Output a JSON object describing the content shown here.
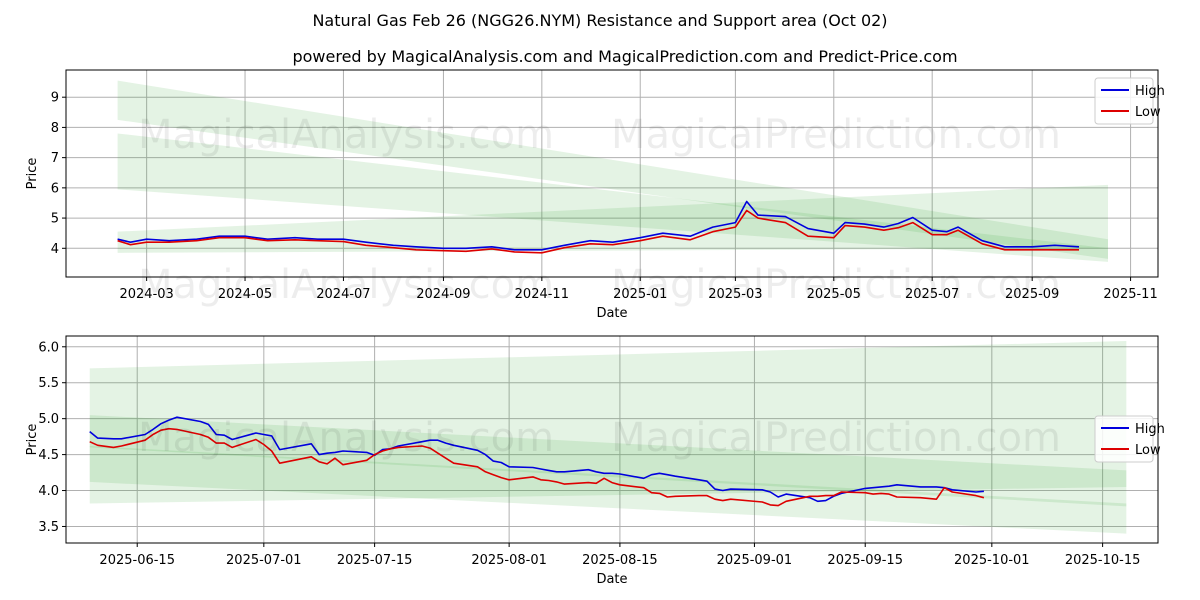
{
  "title": "Natural Gas Feb 26 (NGG26.NYM) Resistance and Support area (Oct 02)",
  "subtitle": "powered by MagicalAnalysis.com and MagicalPrediction.com and Predict-Price.com",
  "watermarks": [
    "MagicalAnalysis.com",
    "MagicalPrediction.com"
  ],
  "colors": {
    "high": "#0000dd",
    "low": "#dd0000",
    "band": "#2ca02c",
    "grid": "#b0b0b0"
  },
  "chart_data": [
    {
      "type": "line",
      "panel": "top",
      "xlabel": "Date",
      "ylabel": "Price",
      "x_range": [
        "2024-01-11",
        "2025-11-18"
      ],
      "ylim": [
        3.05,
        9.9
      ],
      "yticks": [
        4,
        5,
        6,
        7,
        8,
        9
      ],
      "xticks": [
        {
          "date": "2024-03-01",
          "label": "2024-03"
        },
        {
          "date": "2024-05-01",
          "label": "2024-05"
        },
        {
          "date": "2024-07-01",
          "label": "2024-07"
        },
        {
          "date": "2024-09-01",
          "label": "2024-09"
        },
        {
          "date": "2024-11-01",
          "label": "2024-11"
        },
        {
          "date": "2025-01-01",
          "label": "2025-01"
        },
        {
          "date": "2025-03-01",
          "label": "2025-03"
        },
        {
          "date": "2025-05-01",
          "label": "2025-05"
        },
        {
          "date": "2025-07-01",
          "label": "2025-07"
        },
        {
          "date": "2025-09-01",
          "label": "2025-09"
        },
        {
          "date": "2025-11-01",
          "label": "2025-11"
        }
      ],
      "legend": {
        "position": "top-right",
        "entries": [
          "High",
          "Low"
        ]
      },
      "bands": [
        {
          "x": [
            "2024-02-12",
            "2025-10-18"
          ],
          "upper": [
            9.55,
            4.3
          ],
          "lower": [
            8.25,
            3.65
          ]
        },
        {
          "x": [
            "2024-02-12",
            "2025-10-18"
          ],
          "upper": [
            7.8,
            4.0
          ],
          "lower": [
            5.95,
            3.55
          ]
        },
        {
          "x": [
            "2024-02-12",
            "2025-10-18"
          ],
          "upper": [
            4.55,
            6.1
          ],
          "lower": [
            3.85,
            4.0
          ]
        }
      ],
      "series": [
        {
          "name": "High",
          "x": [
            "2024-02-12",
            "2024-02-20",
            "2024-03-01",
            "2024-03-15",
            "2024-04-01",
            "2024-04-15",
            "2024-05-01",
            "2024-05-15",
            "2024-06-01",
            "2024-06-15",
            "2024-07-01",
            "2024-07-15",
            "2024-08-01",
            "2024-08-15",
            "2024-09-01",
            "2024-09-15",
            "2024-10-01",
            "2024-10-15",
            "2024-11-01",
            "2024-11-15",
            "2024-12-01",
            "2024-12-15",
            "2025-01-01",
            "2025-01-15",
            "2025-02-01",
            "2025-02-15",
            "2025-03-01",
            "2025-03-08",
            "2025-03-15",
            "2025-04-01",
            "2025-04-15",
            "2025-05-01",
            "2025-05-08",
            "2025-05-20",
            "2025-06-01",
            "2025-06-10",
            "2025-06-19",
            "2025-07-01",
            "2025-07-10",
            "2025-07-17",
            "2025-08-01",
            "2025-08-15",
            "2025-09-01",
            "2025-09-15",
            "2025-09-30"
          ],
          "values": [
            4.3,
            4.2,
            4.3,
            4.25,
            4.3,
            4.4,
            4.4,
            4.3,
            4.35,
            4.3,
            4.3,
            4.2,
            4.1,
            4.05,
            4.0,
            4.0,
            4.05,
            3.95,
            3.95,
            4.1,
            4.25,
            4.2,
            4.35,
            4.5,
            4.4,
            4.7,
            4.85,
            5.55,
            5.1,
            5.05,
            4.65,
            4.5,
            4.85,
            4.8,
            4.7,
            4.82,
            5.02,
            4.6,
            4.55,
            4.7,
            4.25,
            4.05,
            4.05,
            4.1,
            4.05
          ]
        },
        {
          "name": "Low",
          "x": [
            "2024-02-12",
            "2024-02-20",
            "2024-03-01",
            "2024-03-15",
            "2024-04-01",
            "2024-04-15",
            "2024-05-01",
            "2024-05-15",
            "2024-06-01",
            "2024-06-15",
            "2024-07-01",
            "2024-07-15",
            "2024-08-01",
            "2024-08-15",
            "2024-09-01",
            "2024-09-15",
            "2024-10-01",
            "2024-10-15",
            "2024-11-01",
            "2024-11-15",
            "2024-12-01",
            "2024-12-15",
            "2025-01-01",
            "2025-01-15",
            "2025-02-01",
            "2025-02-15",
            "2025-03-01",
            "2025-03-08",
            "2025-03-15",
            "2025-04-01",
            "2025-04-15",
            "2025-05-01",
            "2025-05-08",
            "2025-05-20",
            "2025-06-01",
            "2025-06-10",
            "2025-06-19",
            "2025-07-01",
            "2025-07-10",
            "2025-07-17",
            "2025-08-01",
            "2025-08-15",
            "2025-09-01",
            "2025-09-15",
            "2025-09-30"
          ],
          "values": [
            4.25,
            4.12,
            4.2,
            4.2,
            4.25,
            4.35,
            4.35,
            4.25,
            4.28,
            4.25,
            4.22,
            4.1,
            4.02,
            3.95,
            3.92,
            3.9,
            3.98,
            3.88,
            3.85,
            4.02,
            4.15,
            4.12,
            4.25,
            4.4,
            4.28,
            4.55,
            4.7,
            5.25,
            5.0,
            4.85,
            4.4,
            4.35,
            4.75,
            4.7,
            4.6,
            4.68,
            4.85,
            4.45,
            4.45,
            4.6,
            4.15,
            3.95,
            3.95,
            3.95,
            3.95
          ]
        }
      ]
    },
    {
      "type": "line",
      "panel": "bottom",
      "xlabel": "Date",
      "ylabel": "Price",
      "x_range": [
        "2025-06-06",
        "2025-10-22"
      ],
      "ylim": [
        3.27,
        6.15
      ],
      "yticks": [
        3.5,
        4.0,
        4.5,
        5.0,
        5.5,
        6.0
      ],
      "xticks": [
        {
          "date": "2025-06-15",
          "label": "2025-06-15"
        },
        {
          "date": "2025-07-01",
          "label": "2025-07-01"
        },
        {
          "date": "2025-07-15",
          "label": "2025-07-15"
        },
        {
          "date": "2025-08-01",
          "label": "2025-08-01"
        },
        {
          "date": "2025-08-15",
          "label": "2025-08-15"
        },
        {
          "date": "2025-09-01",
          "label": "2025-09-01"
        },
        {
          "date": "2025-09-15",
          "label": "2025-09-15"
        },
        {
          "date": "2025-10-01",
          "label": "2025-10-01"
        },
        {
          "date": "2025-10-15",
          "label": "2025-10-15"
        }
      ],
      "legend": {
        "position": "center-right",
        "entries": [
          "High",
          "Low"
        ]
      },
      "bands": [
        {
          "x": [
            "2025-06-09",
            "2025-10-18"
          ],
          "upper": [
            5.7,
            6.08
          ],
          "lower": [
            3.82,
            4.05
          ]
        },
        {
          "x": [
            "2025-06-09",
            "2025-10-18"
          ],
          "upper": [
            5.05,
            4.28
          ],
          "lower": [
            4.6,
            3.78
          ]
        },
        {
          "x": [
            "2025-06-09",
            "2025-10-18"
          ],
          "upper": [
            4.62,
            3.82
          ],
          "lower": [
            4.12,
            3.4
          ]
        }
      ],
      "series": [
        {
          "name": "High",
          "x": [
            "2025-06-09",
            "2025-06-10",
            "2025-06-12",
            "2025-06-13",
            "2025-06-16",
            "2025-06-17",
            "2025-06-18",
            "2025-06-19",
            "2025-06-20",
            "2025-06-23",
            "2025-06-24",
            "2025-06-25",
            "2025-06-26",
            "2025-06-27",
            "2025-06-30",
            "2025-07-01",
            "2025-07-02",
            "2025-07-03",
            "2025-07-07",
            "2025-07-08",
            "2025-07-09",
            "2025-07-10",
            "2025-07-11",
            "2025-07-14",
            "2025-07-15",
            "2025-07-16",
            "2025-07-17",
            "2025-07-18",
            "2025-07-21",
            "2025-07-22",
            "2025-07-23",
            "2025-07-24",
            "2025-07-25",
            "2025-07-28",
            "2025-07-29",
            "2025-07-30",
            "2025-07-31",
            "2025-08-01",
            "2025-08-04",
            "2025-08-05",
            "2025-08-06",
            "2025-08-07",
            "2025-08-08",
            "2025-08-11",
            "2025-08-12",
            "2025-08-13",
            "2025-08-14",
            "2025-08-15",
            "2025-08-18",
            "2025-08-19",
            "2025-08-20",
            "2025-08-21",
            "2025-08-22",
            "2025-08-25",
            "2025-08-26",
            "2025-08-27",
            "2025-08-28",
            "2025-08-29",
            "2025-09-02",
            "2025-09-03",
            "2025-09-04",
            "2025-09-05",
            "2025-09-08",
            "2025-09-09",
            "2025-09-10",
            "2025-09-11",
            "2025-09-12",
            "2025-09-15",
            "2025-09-16",
            "2025-09-17",
            "2025-09-18",
            "2025-09-19",
            "2025-09-22",
            "2025-09-23",
            "2025-09-24",
            "2025-09-25",
            "2025-09-26",
            "2025-09-29",
            "2025-09-30"
          ],
          "values": [
            4.82,
            4.73,
            4.72,
            4.72,
            4.78,
            4.85,
            4.93,
            4.98,
            5.02,
            4.96,
            4.92,
            4.78,
            4.77,
            4.71,
            4.8,
            4.78,
            4.76,
            4.57,
            4.65,
            4.5,
            4.52,
            4.53,
            4.55,
            4.53,
            4.49,
            4.57,
            4.58,
            4.62,
            4.68,
            4.7,
            4.7,
            4.66,
            4.63,
            4.56,
            4.5,
            4.41,
            4.39,
            4.33,
            4.32,
            4.3,
            4.28,
            4.26,
            4.26,
            4.29,
            4.26,
            4.24,
            4.24,
            4.23,
            4.17,
            4.22,
            4.24,
            4.22,
            4.2,
            4.15,
            4.13,
            4.02,
            4.0,
            4.02,
            4.01,
            3.98,
            3.91,
            3.95,
            3.9,
            3.85,
            3.86,
            3.92,
            3.96,
            4.03,
            4.04,
            4.05,
            4.06,
            4.08,
            4.05,
            4.05,
            4.05,
            4.04,
            4.01,
            3.98,
            3.99
          ]
        },
        {
          "name": "Low",
          "x": [
            "2025-06-09",
            "2025-06-10",
            "2025-06-12",
            "2025-06-13",
            "2025-06-16",
            "2025-06-17",
            "2025-06-18",
            "2025-06-19",
            "2025-06-20",
            "2025-06-23",
            "2025-06-24",
            "2025-06-25",
            "2025-06-26",
            "2025-06-27",
            "2025-06-30",
            "2025-07-01",
            "2025-07-02",
            "2025-07-03",
            "2025-07-07",
            "2025-07-08",
            "2025-07-09",
            "2025-07-10",
            "2025-07-11",
            "2025-07-14",
            "2025-07-15",
            "2025-07-16",
            "2025-07-17",
            "2025-07-18",
            "2025-07-21",
            "2025-07-22",
            "2025-07-23",
            "2025-07-24",
            "2025-07-25",
            "2025-07-28",
            "2025-07-29",
            "2025-07-30",
            "2025-07-31",
            "2025-08-01",
            "2025-08-04",
            "2025-08-05",
            "2025-08-06",
            "2025-08-07",
            "2025-08-08",
            "2025-08-11",
            "2025-08-12",
            "2025-08-13",
            "2025-08-14",
            "2025-08-15",
            "2025-08-18",
            "2025-08-19",
            "2025-08-20",
            "2025-08-21",
            "2025-08-22",
            "2025-08-25",
            "2025-08-26",
            "2025-08-27",
            "2025-08-28",
            "2025-08-29",
            "2025-09-02",
            "2025-09-03",
            "2025-09-04",
            "2025-09-05",
            "2025-09-08",
            "2025-09-09",
            "2025-09-10",
            "2025-09-11",
            "2025-09-12",
            "2025-09-15",
            "2025-09-16",
            "2025-09-17",
            "2025-09-18",
            "2025-09-19",
            "2025-09-22",
            "2025-09-23",
            "2025-09-24",
            "2025-09-25",
            "2025-09-26",
            "2025-09-29",
            "2025-09-30"
          ],
          "values": [
            4.68,
            4.63,
            4.6,
            4.62,
            4.7,
            4.78,
            4.84,
            4.86,
            4.85,
            4.78,
            4.74,
            4.66,
            4.66,
            4.6,
            4.71,
            4.64,
            4.55,
            4.38,
            4.47,
            4.4,
            4.37,
            4.45,
            4.36,
            4.42,
            4.5,
            4.55,
            4.58,
            4.6,
            4.62,
            4.59,
            4.52,
            4.45,
            4.38,
            4.33,
            4.26,
            4.22,
            4.18,
            4.15,
            4.19,
            4.15,
            4.14,
            4.12,
            4.09,
            4.11,
            4.1,
            4.17,
            4.11,
            4.08,
            4.04,
            3.97,
            3.96,
            3.91,
            3.92,
            3.93,
            3.93,
            3.88,
            3.86,
            3.88,
            3.84,
            3.8,
            3.79,
            3.85,
            3.92,
            3.92,
            3.93,
            3.93,
            3.98,
            3.97,
            3.95,
            3.96,
            3.95,
            3.91,
            3.9,
            3.89,
            3.88,
            4.04,
            3.98,
            3.93,
            3.9
          ]
        }
      ]
    }
  ]
}
